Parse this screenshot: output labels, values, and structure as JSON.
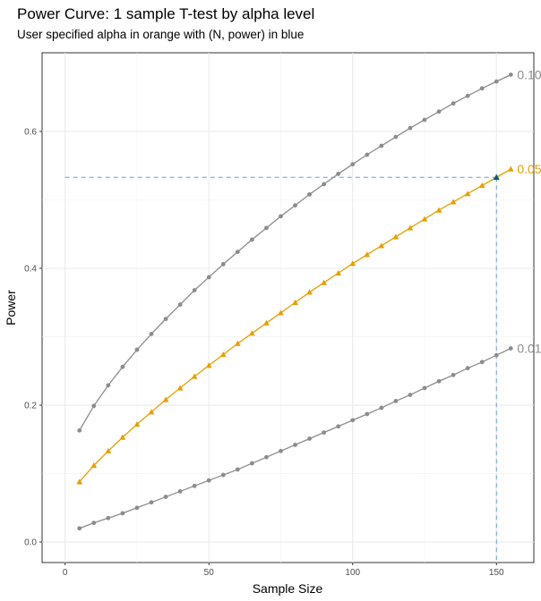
{
  "chart_data": {
    "type": "line",
    "title": "Power Curve: 1 sample T-test by alpha level",
    "subtitle": "User specified alpha in orange with (N, power) in blue",
    "xlabel": "Sample Size",
    "ylabel": "Power",
    "xlim": [
      -8,
      163
    ],
    "ylim": [
      -0.03,
      0.715
    ],
    "x_ticks": [
      0,
      50,
      100,
      150
    ],
    "y_ticks": [
      0.0,
      0.2,
      0.4,
      0.6
    ],
    "y_tick_labels": [
      "0.0",
      "0.2",
      "0.4",
      "0.6"
    ],
    "grid": true,
    "x": [
      5,
      10,
      15,
      20,
      25,
      30,
      35,
      40,
      45,
      50,
      55,
      60,
      65,
      70,
      75,
      80,
      85,
      90,
      95,
      100,
      105,
      110,
      115,
      120,
      125,
      130,
      135,
      140,
      145,
      150,
      155
    ],
    "series": [
      {
        "name": "0.10",
        "color": "#8c8c8c",
        "marker": "circle",
        "values": [
          0.163,
          0.199,
          0.229,
          0.256,
          0.281,
          0.304,
          0.326,
          0.347,
          0.368,
          0.387,
          0.406,
          0.424,
          0.442,
          0.459,
          0.476,
          0.492,
          0.508,
          0.523,
          0.538,
          0.552,
          0.566,
          0.579,
          0.592,
          0.605,
          0.617,
          0.629,
          0.641,
          0.652,
          0.663,
          0.673,
          0.683
        ]
      },
      {
        "name": "0.05",
        "color": "#e69f00",
        "marker": "triangle",
        "values": [
          0.088,
          0.112,
          0.133,
          0.153,
          0.172,
          0.19,
          0.208,
          0.225,
          0.242,
          0.258,
          0.274,
          0.29,
          0.305,
          0.32,
          0.335,
          0.35,
          0.365,
          0.379,
          0.393,
          0.407,
          0.42,
          0.433,
          0.446,
          0.459,
          0.472,
          0.485,
          0.497,
          0.509,
          0.521,
          0.533,
          0.545
        ]
      },
      {
        "name": "0.01",
        "color": "#8c8c8c",
        "marker": "circle",
        "values": [
          0.02,
          0.028,
          0.035,
          0.042,
          0.05,
          0.058,
          0.066,
          0.074,
          0.082,
          0.09,
          0.098,
          0.106,
          0.115,
          0.124,
          0.133,
          0.142,
          0.151,
          0.16,
          0.169,
          0.178,
          0.187,
          0.196,
          0.206,
          0.215,
          0.225,
          0.235,
          0.244,
          0.254,
          0.263,
          0.273,
          0.283
        ]
      }
    ],
    "highlight_point": {
      "x": 150,
      "y": 0.533,
      "color": "#0d5a8a"
    },
    "reference_line_color": "#6a9fd4"
  }
}
